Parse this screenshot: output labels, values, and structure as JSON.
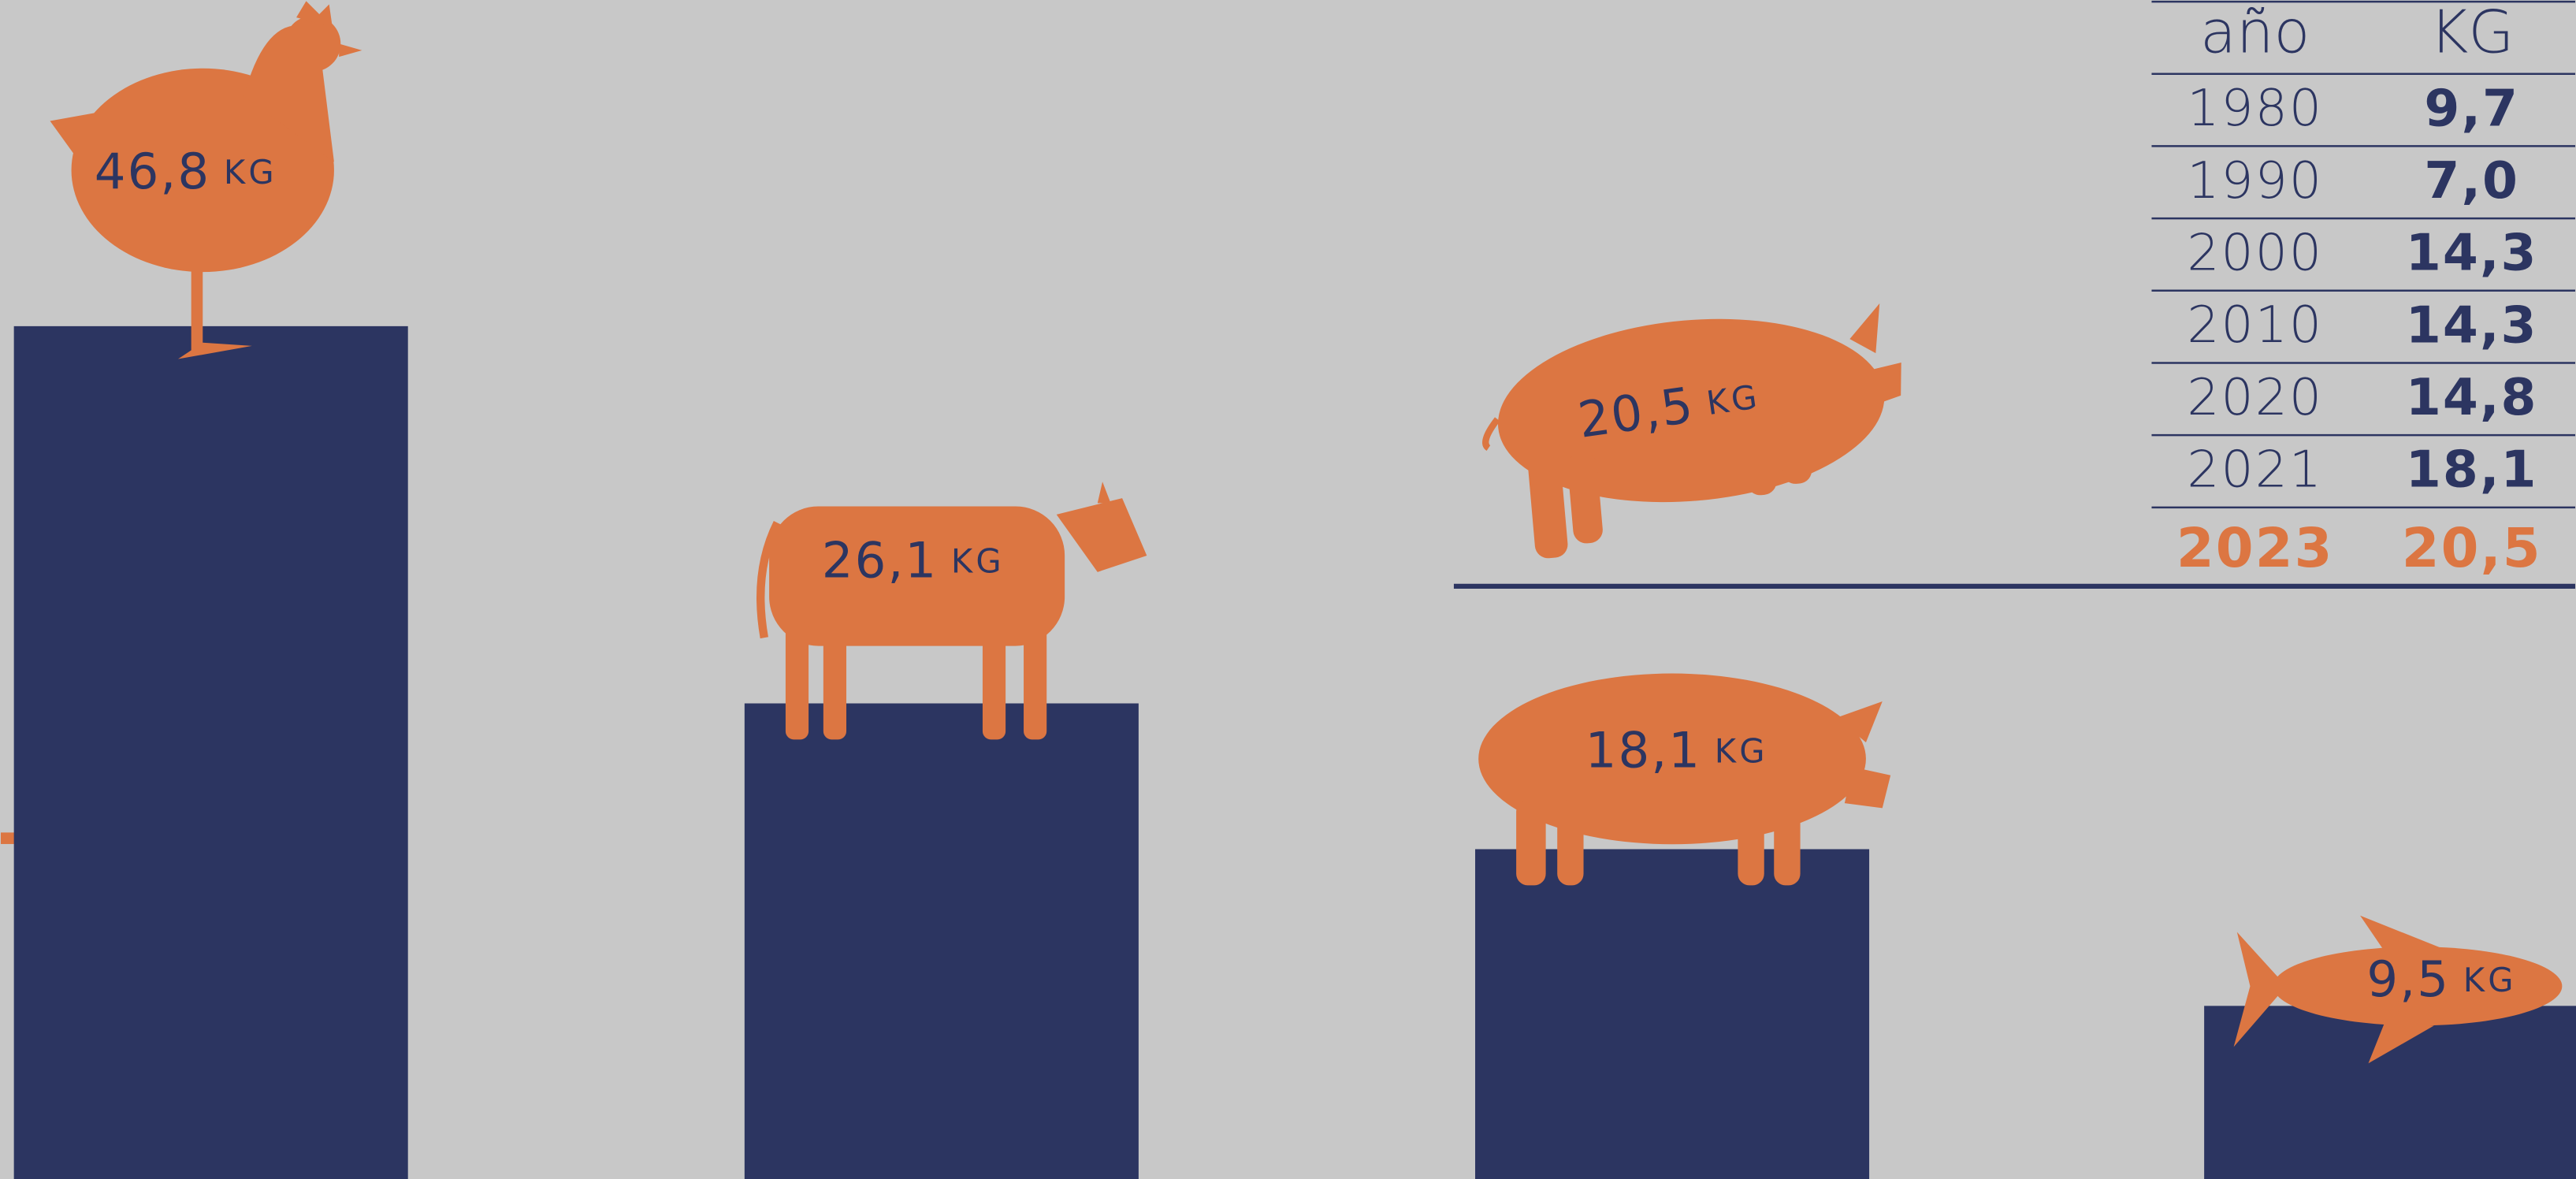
{
  "chart_data": {
    "type": "bar",
    "categories": [
      null,
      null,
      null,
      null
    ],
    "values": [
      46.8,
      26.1,
      18.1,
      9.5
    ],
    "value_labels": [
      "46,8",
      "26,1",
      "18,1",
      "9,5"
    ],
    "unit": "KG",
    "color": "#2c3561",
    "ylim": [
      0,
      64.7
    ]
  },
  "annotation": "20,5",
  "table": {
    "columns": [
      "año",
      "KG"
    ],
    "rows": [
      [
        "1980",
        "9,7"
      ],
      [
        "1990",
        "7,0"
      ],
      [
        "2000",
        "14,3"
      ],
      [
        "2010",
        "14,3"
      ],
      [
        "2020",
        "14,8"
      ],
      [
        "2021",
        "18,1"
      ],
      [
        "2023",
        "20,5"
      ]
    ]
  }
}
